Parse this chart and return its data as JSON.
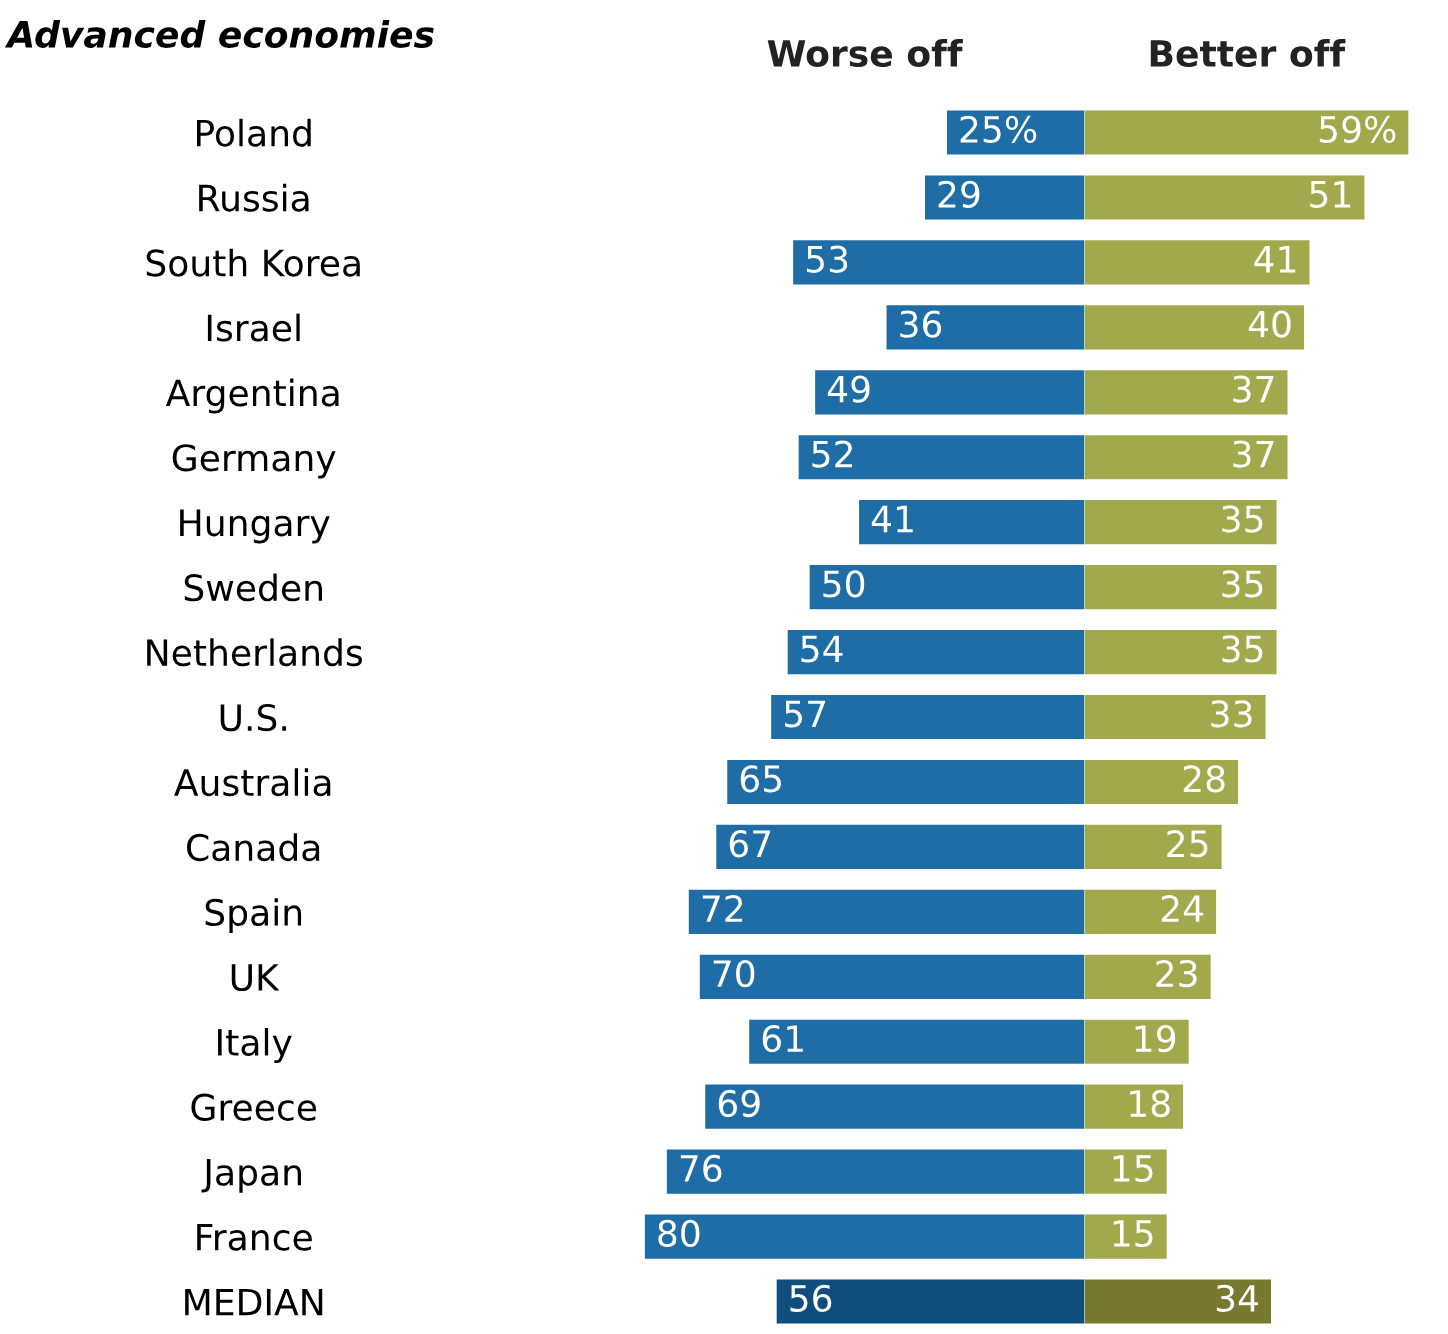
{
  "chart_data": [
    {
      "type": "bar",
      "orientation": "horizontal",
      "title": "Advanced economies",
      "categories": [
        "Poland",
        "Russia",
        "South Korea",
        "Israel",
        "Argentina",
        "Germany",
        "Hungary",
        "Sweden",
        "Netherlands",
        "U.S.",
        "Australia",
        "Canada",
        "Spain",
        "UK",
        "Italy",
        "Greece",
        "Japan",
        "France",
        "MEDIAN"
      ],
      "series": [
        {
          "name": "Worse off",
          "colors": [
            "#1f6da6",
            "#1f6da6",
            "#1f6da6",
            "#1f6da6",
            "#1f6da6",
            "#1f6da6",
            "#1f6da6",
            "#1f6da6",
            "#1f6da6",
            "#1f6da6",
            "#1f6da6",
            "#1f6da6",
            "#1f6da6",
            "#1f6da6",
            "#1f6da6",
            "#1f6da6",
            "#1f6da6",
            "#1f6da6",
            "#0f4d7c"
          ],
          "values": [
            25,
            29,
            53,
            36,
            49,
            52,
            41,
            50,
            54,
            57,
            65,
            67,
            72,
            70,
            61,
            69,
            76,
            80,
            56
          ],
          "value_labels": [
            "25%",
            "29",
            "53",
            "36",
            "49",
            "52",
            "41",
            "50",
            "54",
            "57",
            "65",
            "67",
            "72",
            "70",
            "61",
            "69",
            "76",
            "80",
            "56"
          ]
        }
      ],
      "tick_labels": "y",
      "grid": false,
      "legend": false
    },
    {
      "type": "bar",
      "orientation": "horizontal",
      "categories": [
        null,
        null,
        null,
        null,
        null,
        null,
        null,
        null,
        null,
        null,
        null,
        null,
        null,
        null,
        null,
        null,
        null,
        null,
        null
      ],
      "series": [
        {
          "name": "Better off",
          "colors": [
            "#a2a94c",
            "#a2a94c",
            "#a2a94c",
            "#a2a94c",
            "#a2a94c",
            "#a2a94c",
            "#a2a94c",
            "#a2a94c",
            "#a2a94c",
            "#a2a94c",
            "#a2a94c",
            "#a2a94c",
            "#a2a94c",
            "#a2a94c",
            "#a2a94c",
            "#a2a94c",
            "#a2a94c",
            "#a2a94c",
            "#76792f"
          ],
          "values": [
            59,
            51,
            41,
            40,
            37,
            37,
            35,
            35,
            35,
            33,
            28,
            25,
            24,
            23,
            19,
            18,
            15,
            15,
            34
          ],
          "value_labels": [
            "59%",
            "51",
            "41",
            "40",
            "37",
            "37",
            "35",
            "35",
            "35",
            "33",
            "28",
            "25",
            "24",
            "23",
            "19",
            "18",
            "15",
            "15",
            "34"
          ]
        }
      ],
      "tick_labels": false,
      "grid": false,
      "legend": false
    }
  ]
}
